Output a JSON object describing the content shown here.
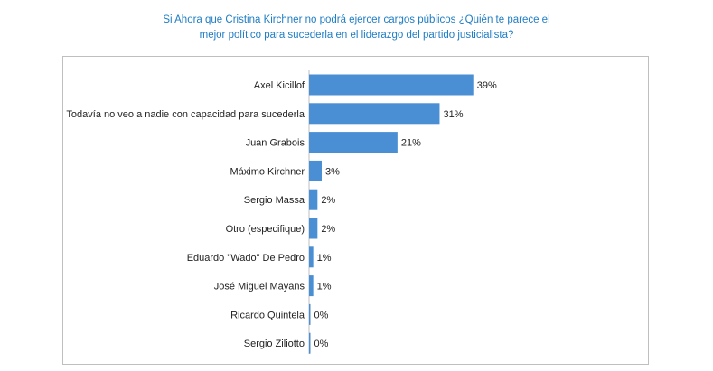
{
  "chart_data": {
    "type": "bar",
    "orientation": "horizontal",
    "title_lines": [
      "Si Ahora que Cristina Kirchner no podrá ejercer cargos públicos ¿Quién te parece el",
      "mejor político para sucederla en el liderazgo del partido justicialista?"
    ],
    "categories": [
      "Axel Kicillof",
      "Todavía no veo a nadie con capacidad para sucederla",
      "Juan Grabois",
      "Máximo Kirchner",
      "Sergio Massa",
      "Otro (especifique)",
      "Eduardo \"Wado\" De Pedro",
      "José Miguel Mayans",
      "Ricardo Quintela",
      "Sergio Ziliotto"
    ],
    "values": [
      39,
      31,
      21,
      3,
      2,
      2,
      1,
      1,
      0,
      0
    ],
    "value_labels": [
      "39%",
      "31%",
      "21%",
      "3%",
      "2%",
      "2%",
      "1%",
      "1%",
      "0%",
      "0%"
    ],
    "xlim": [
      0,
      100
    ],
    "grid": false,
    "legend": "none",
    "bar_color": "#4a8fd3",
    "title_color": "#1f7dc4"
  }
}
